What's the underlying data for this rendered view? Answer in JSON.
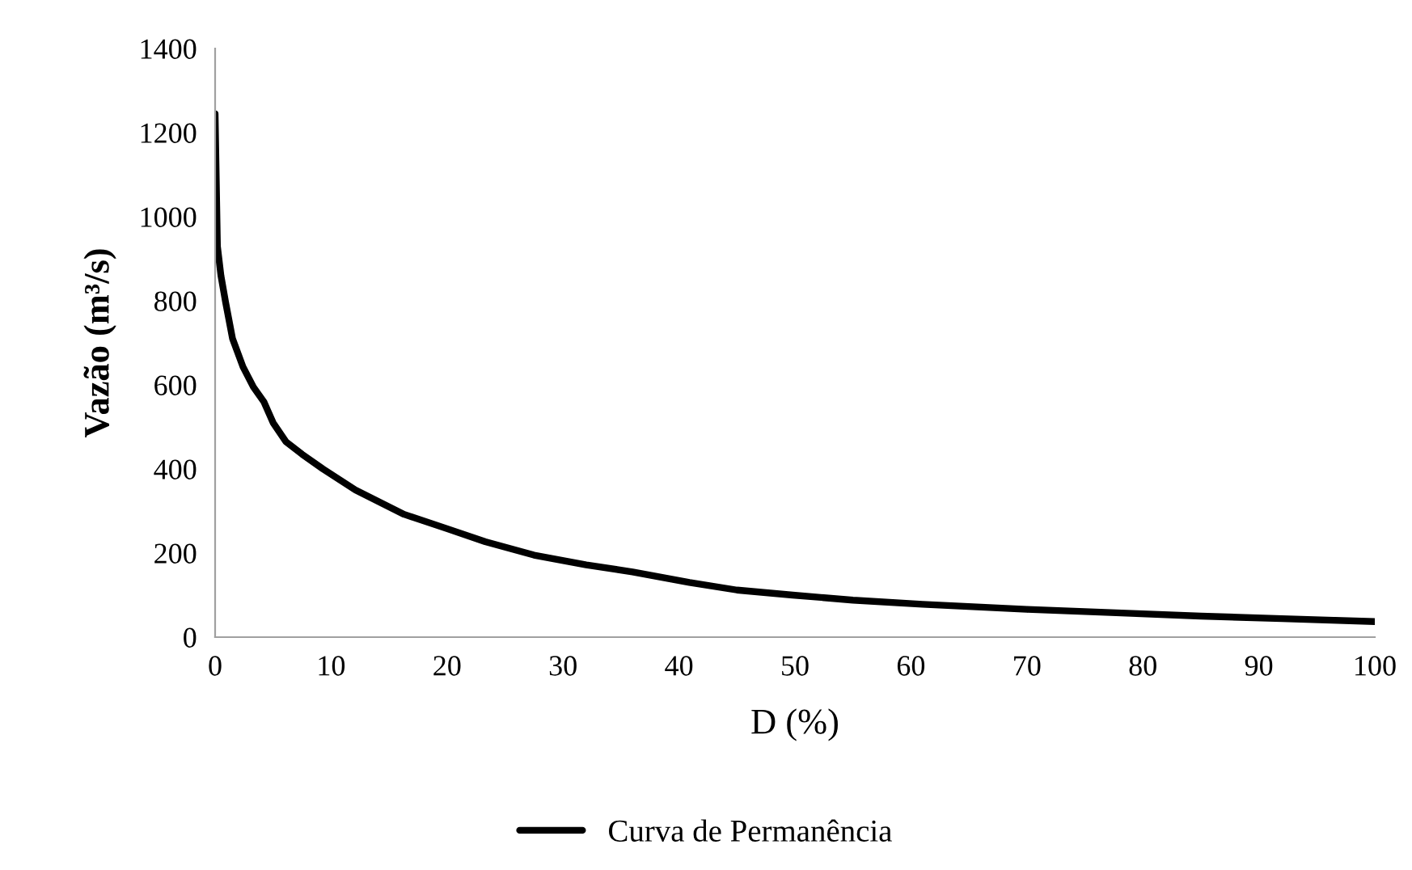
{
  "chart_data": {
    "type": "line",
    "xlabel": "D (%)",
    "ylabel": "Vazão (m³/s)",
    "xlim": [
      0,
      100
    ],
    "xticks": [
      0,
      10,
      20,
      30,
      40,
      50,
      60,
      70,
      80,
      90,
      100
    ],
    "ylim": [
      0,
      1400
    ],
    "yticks": [
      0,
      200,
      400,
      600,
      800,
      1000,
      1200,
      1400
    ],
    "grid": false,
    "legend": "bottom",
    "marker": "none",
    "line_style": "solid",
    "series": [
      {
        "name": "Curva de Permanência",
        "color": "#000000",
        "x": [
          0,
          0.2,
          0.5,
          0.9,
          1.5,
          2.4,
          3.3,
          4.2,
          5.0,
          6.1,
          7.5,
          9.3,
          12.1,
          16.3,
          20,
          23.3,
          27.5,
          32,
          36,
          40.9,
          45,
          49.8,
          55,
          61,
          70,
          77.7,
          85,
          92,
          100
        ],
        "values": [
          1245,
          930,
          860,
          797,
          710,
          643,
          595,
          560,
          510,
          465,
          435,
          400,
          350,
          292,
          258,
          227,
          195,
          172,
          155,
          130,
          112,
          100,
          88,
          78,
          66,
          58,
          50,
          44,
          37
        ]
      }
    ]
  }
}
